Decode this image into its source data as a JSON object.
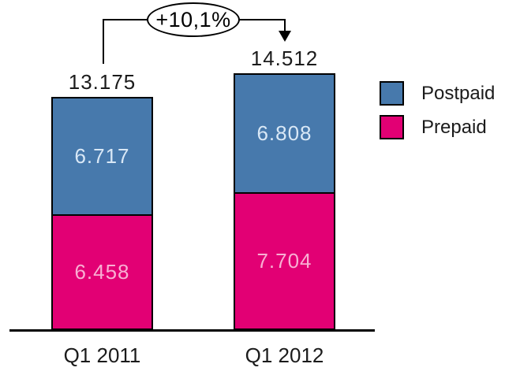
{
  "chart_data": {
    "type": "bar",
    "stacked": true,
    "categories": [
      "Q1 2011",
      "Q1 2012"
    ],
    "series": [
      {
        "name": "Postpaid",
        "color": "#4779ac",
        "values": [
          6717,
          6808
        ],
        "display": [
          "6.717",
          "6.808"
        ]
      },
      {
        "name": "Prepaid",
        "color": "#e20074",
        "values": [
          6458,
          7704
        ],
        "display": [
          "6.458",
          "7.704"
        ]
      }
    ],
    "totals": [
      13175,
      14512
    ],
    "totals_display": [
      "13.175",
      "14.512"
    ],
    "annotation": {
      "label": "+10,1%"
    },
    "legend": {
      "position": "right",
      "entries": [
        "Postpaid",
        "Prepaid"
      ]
    },
    "grid": false,
    "axes": {
      "x_baseline_only": true
    }
  }
}
